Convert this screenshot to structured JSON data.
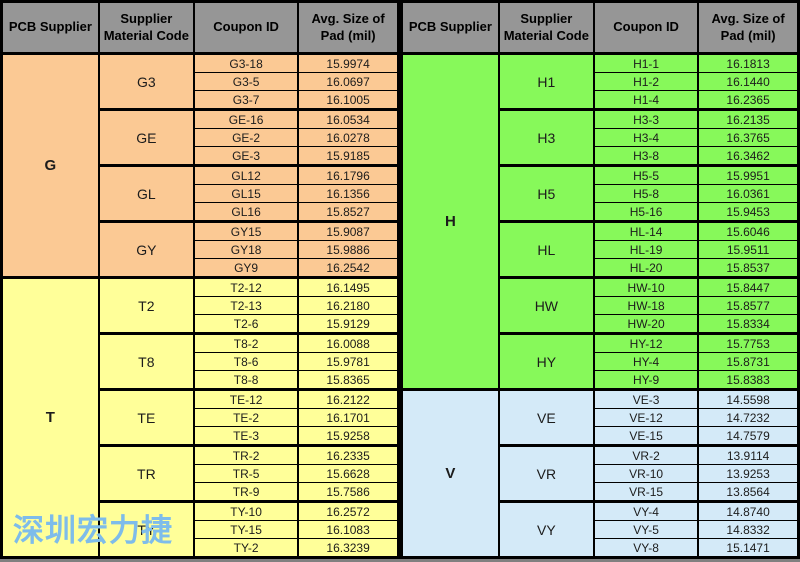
{
  "header": {
    "columns": [
      "PCB Supplier",
      "Supplier Material Code",
      "Coupon ID",
      "Avg. Size of Pad (mil)"
    ]
  },
  "watermark": "深圳宏力捷",
  "colors": {
    "page_bg": "#808080",
    "header_bg": "#969696",
    "border": "#000000",
    "supplier_G": "#FBC994",
    "supplier_T": "#FFFF99",
    "supplier_H": "#87F95A",
    "supplier_V": "#D4EAF8",
    "watermark_text": "#7EBCEA"
  },
  "tables": [
    {
      "suppliers": [
        {
          "name": "G",
          "color_key": "supplier_G",
          "groups": [
            {
              "code": "G3",
              "rows": [
                [
                  "G3-18",
                  "15.9974"
                ],
                [
                  "G3-5",
                  "16.0697"
                ],
                [
                  "G3-7",
                  "16.1005"
                ]
              ]
            },
            {
              "code": "GE",
              "rows": [
                [
                  "GE-16",
                  "16.0534"
                ],
                [
                  "GE-2",
                  "16.0278"
                ],
                [
                  "GE-3",
                  "15.9185"
                ]
              ]
            },
            {
              "code": "GL",
              "rows": [
                [
                  "GL12",
                  "16.1796"
                ],
                [
                  "GL15",
                  "16.1356"
                ],
                [
                  "GL16",
                  "15.8527"
                ]
              ]
            },
            {
              "code": "GY",
              "rows": [
                [
                  "GY15",
                  "15.9087"
                ],
                [
                  "GY18",
                  "15.9886"
                ],
                [
                  "GY9",
                  "16.2542"
                ]
              ]
            }
          ]
        },
        {
          "name": "T",
          "color_key": "supplier_T",
          "groups": [
            {
              "code": "T2",
              "rows": [
                [
                  "T2-12",
                  "16.1495"
                ],
                [
                  "T2-13",
                  "16.2180"
                ],
                [
                  "T2-6",
                  "15.9129"
                ]
              ]
            },
            {
              "code": "T8",
              "rows": [
                [
                  "T8-2",
                  "16.0088"
                ],
                [
                  "T8-6",
                  "15.9781"
                ],
                [
                  "T8-8",
                  "15.8365"
                ]
              ]
            },
            {
              "code": "TE",
              "rows": [
                [
                  "TE-12",
                  "16.2122"
                ],
                [
                  "TE-2",
                  "16.1701"
                ],
                [
                  "TE-3",
                  "15.9258"
                ]
              ]
            },
            {
              "code": "TR",
              "rows": [
                [
                  "TR-2",
                  "16.2335"
                ],
                [
                  "TR-5",
                  "15.6628"
                ],
                [
                  "TR-9",
                  "15.7586"
                ]
              ]
            },
            {
              "code": "TY",
              "rows": [
                [
                  "TY-10",
                  "16.2572"
                ],
                [
                  "TY-15",
                  "16.1083"
                ],
                [
                  "TY-2",
                  "16.3239"
                ]
              ]
            }
          ]
        }
      ]
    },
    {
      "suppliers": [
        {
          "name": "H",
          "color_key": "supplier_H",
          "groups": [
            {
              "code": "H1",
              "rows": [
                [
                  "H1-1",
                  "16.1813"
                ],
                [
                  "H1-2",
                  "16.1440"
                ],
                [
                  "H1-4",
                  "16.2365"
                ]
              ]
            },
            {
              "code": "H3",
              "rows": [
                [
                  "H3-3",
                  "16.2135"
                ],
                [
                  "H3-4",
                  "16.3765"
                ],
                [
                  "H3-8",
                  "16.3462"
                ]
              ]
            },
            {
              "code": "H5",
              "rows": [
                [
                  "H5-5",
                  "15.9951"
                ],
                [
                  "H5-8",
                  "16.0361"
                ],
                [
                  "H5-16",
                  "15.9453"
                ]
              ]
            },
            {
              "code": "HL",
              "rows": [
                [
                  "HL-14",
                  "15.6046"
                ],
                [
                  "HL-19",
                  "15.9511"
                ],
                [
                  "HL-20",
                  "15.8537"
                ]
              ]
            },
            {
              "code": "HW",
              "rows": [
                [
                  "HW-10",
                  "15.8447"
                ],
                [
                  "HW-18",
                  "15.8577"
                ],
                [
                  "HW-20",
                  "15.8334"
                ]
              ]
            },
            {
              "code": "HY",
              "rows": [
                [
                  "HY-12",
                  "15.7753"
                ],
                [
                  "HY-4",
                  "15.8731"
                ],
                [
                  "HY-9",
                  "15.8383"
                ]
              ]
            }
          ]
        },
        {
          "name": "V",
          "color_key": "supplier_V",
          "groups": [
            {
              "code": "VE",
              "rows": [
                [
                  "VE-3",
                  "14.5598"
                ],
                [
                  "VE-12",
                  "14.7232"
                ],
                [
                  "VE-15",
                  "14.7579"
                ]
              ]
            },
            {
              "code": "VR",
              "rows": [
                [
                  "VR-2",
                  "13.9114"
                ],
                [
                  "VR-10",
                  "13.9253"
                ],
                [
                  "VR-15",
                  "13.8564"
                ]
              ]
            },
            {
              "code": "VY",
              "rows": [
                [
                  "VY-4",
                  "14.8740"
                ],
                [
                  "VY-5",
                  "14.8332"
                ],
                [
                  "VY-8",
                  "15.1471"
                ]
              ]
            }
          ]
        }
      ]
    }
  ]
}
